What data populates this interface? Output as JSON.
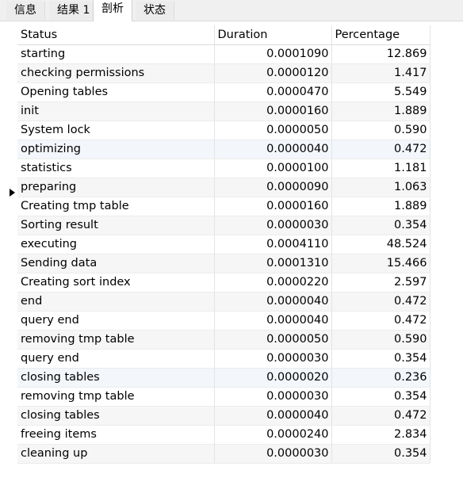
{
  "tabs": [
    {
      "label": "信息"
    },
    {
      "label": "结果 1"
    },
    {
      "label": "剖析"
    },
    {
      "label": "状态"
    }
  ],
  "active_tab": "剖析",
  "table": {
    "columns": [
      "Status",
      "Duration",
      "Percentage"
    ],
    "rows": [
      [
        "starting",
        "0.0001090",
        "12.869"
      ],
      [
        "checking permissions",
        "0.0000120",
        "1.417"
      ],
      [
        "Opening tables",
        "0.0000470",
        "5.549"
      ],
      [
        "init",
        "0.0000160",
        "1.889"
      ],
      [
        "System lock",
        "0.0000050",
        "0.590"
      ],
      [
        "optimizing",
        "0.0000040",
        "0.472"
      ],
      [
        "statistics",
        "0.0000100",
        "1.181"
      ],
      [
        "preparing",
        "0.0000090",
        "1.063"
      ],
      [
        "Creating tmp table",
        "0.0000160",
        "1.889"
      ],
      [
        "Sorting result",
        "0.0000030",
        "0.354"
      ],
      [
        "executing",
        "0.0004110",
        "48.524"
      ],
      [
        "Sending data",
        "0.0001310",
        "15.466"
      ],
      [
        "Creating sort index",
        "0.0000220",
        "2.597"
      ],
      [
        "end",
        "0.0000040",
        "0.472"
      ],
      [
        "query end",
        "0.0000040",
        "0.472"
      ],
      [
        "removing tmp table",
        "0.0000050",
        "0.590"
      ],
      [
        "query end",
        "0.0000030",
        "0.354"
      ],
      [
        "closing tables",
        "0.0000020",
        "0.236"
      ],
      [
        "removing tmp table",
        "0.0000030",
        "0.354"
      ],
      [
        "closing tables",
        "0.0000040",
        "0.472"
      ],
      [
        "freeing items",
        "0.0000240",
        "2.834"
      ],
      [
        "cleaning up",
        "0.0000030",
        "0.354"
      ]
    ],
    "current_row_index": 7
  }
}
